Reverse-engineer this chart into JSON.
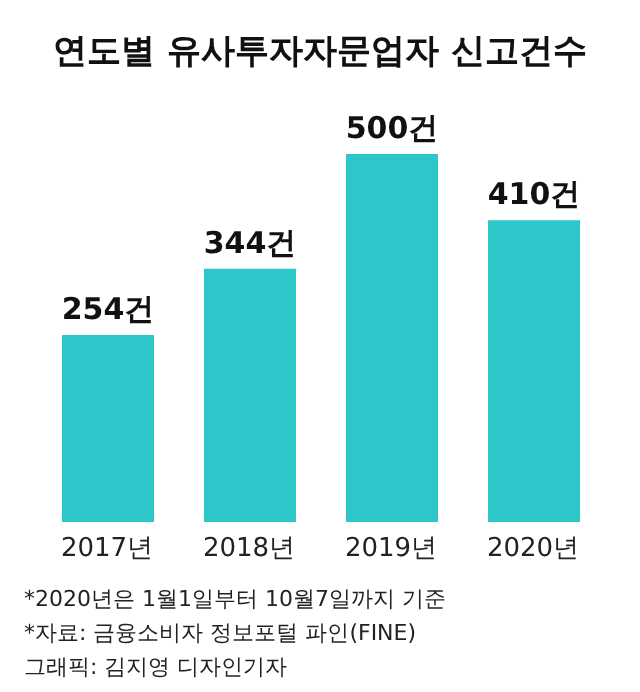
{
  "chart_data": {
    "type": "bar",
    "title": "연도별 유사투자자문업자 신고건수",
    "categories": [
      "2017년",
      "2018년",
      "2019년",
      "2020년"
    ],
    "values": [
      254,
      344,
      500,
      410
    ],
    "color": "#2ec7c9",
    "value_labels": [
      "254건",
      "344건",
      "500건",
      "410건"
    ],
    "annotations": [
      "*2020년은 1월1일부터 10월7일까지 기준",
      "*자료: 금융소비자 정보포털 파인(FINE)",
      "그래픽: 김지영 디자인기자"
    ]
  }
}
